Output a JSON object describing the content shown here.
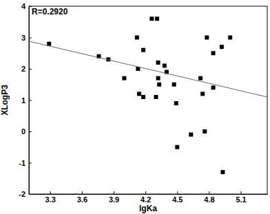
{
  "chart_data": {
    "type": "scatter",
    "x_label": "lgKa",
    "y_label": "XLogP3",
    "annotation": "R=0.2920",
    "xlim": [
      3.1,
      5.35
    ],
    "xticks": [
      3.3,
      3.6,
      3.9,
      4.2,
      4.5,
      4.8,
      5.1
    ],
    "ylim": [
      -2,
      4
    ],
    "yticks": [
      -2,
      -1,
      0,
      1,
      2,
      3,
      4
    ],
    "series": [
      {
        "type": "scatter",
        "marker": "square",
        "color": "#000000",
        "x": [
          3.29,
          3.76,
          3.85,
          4.0,
          4.12,
          4.13,
          4.14,
          4.18,
          4.18,
          4.26,
          4.31,
          4.3,
          4.32,
          4.32,
          4.33,
          4.38,
          4.4,
          4.47,
          4.49,
          4.5,
          4.63,
          4.72,
          4.74,
          4.76,
          4.78,
          4.84,
          4.84,
          4.92,
          4.93,
          5.0
        ],
        "values": [
          2.8,
          2.4,
          2.3,
          1.7,
          3.0,
          2.0,
          1.2,
          2.6,
          1.1,
          3.6,
          3.6,
          1.1,
          2.2,
          1.7,
          1.5,
          2.1,
          1.9,
          1.5,
          0.9,
          -0.5,
          -0.1,
          1.7,
          1.2,
          0.0,
          3.0,
          2.5,
          1.4,
          2.7,
          -1.3,
          3.0
        ]
      },
      {
        "type": "line",
        "line_style": "solid",
        "color": "#666666",
        "x": [
          3.1,
          5.35
        ],
        "values": [
          2.88,
          1.1
        ]
      }
    ]
  }
}
